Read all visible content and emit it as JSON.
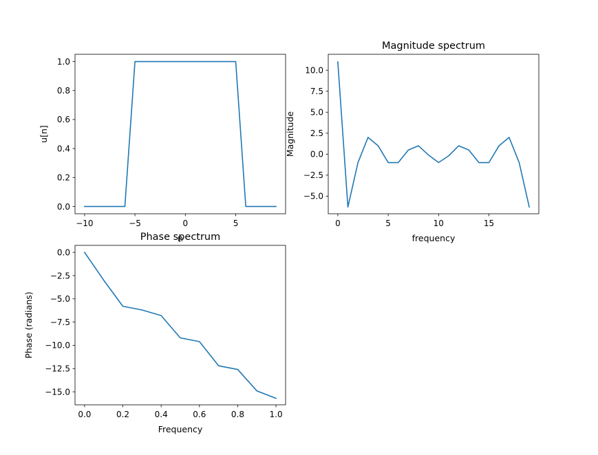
{
  "chart_data": [
    {
      "type": "line",
      "title": "",
      "xlabel": "n",
      "ylabel": "u[n]",
      "xlim": [
        -10.95,
        9.95
      ],
      "ylim": [
        -0.05,
        1.05
      ],
      "xticks": [
        -10,
        -5,
        0,
        5
      ],
      "yticks": [
        0.0,
        0.2,
        0.4,
        0.6,
        0.8,
        1.0
      ],
      "xtick_labels": [
        "−10",
        "−5",
        "0",
        "5"
      ],
      "ytick_labels": [
        "0.0",
        "0.2",
        "0.4",
        "0.6",
        "0.8",
        "1.0"
      ],
      "grid": false,
      "color": "#1f77b4",
      "x": [
        -10,
        -9,
        -8,
        -7,
        -6,
        -5,
        -4,
        -3,
        -2,
        -1,
        0,
        1,
        2,
        3,
        4,
        5,
        6,
        7,
        8,
        9
      ],
      "y": [
        0,
        0,
        0,
        0,
        0,
        1,
        1,
        1,
        1,
        1,
        1,
        1,
        1,
        1,
        1,
        1,
        0,
        0,
        0,
        0
      ]
    },
    {
      "type": "line",
      "title": "Magnitude spectrum",
      "xlabel": "frequency",
      "ylabel": "Magnitude",
      "xlim": [
        -0.95,
        19.95
      ],
      "ylim": [
        -7.1,
        11.9
      ],
      "xticks": [
        0,
        5,
        10,
        15
      ],
      "yticks": [
        -5.0,
        -2.5,
        0.0,
        2.5,
        5.0,
        7.5,
        10.0
      ],
      "xtick_labels": [
        "0",
        "5",
        "10",
        "15"
      ],
      "ytick_labels": [
        "−5.0",
        "−2.5",
        "0.0",
        "2.5",
        "5.0",
        "7.5",
        "10.0"
      ],
      "grid": false,
      "color": "#1f77b4",
      "x": [
        0,
        1,
        2,
        3,
        4,
        5,
        6,
        7,
        8,
        9,
        10,
        11,
        12,
        13,
        14,
        15,
        16,
        17,
        18,
        19
      ],
      "y": [
        11.0,
        -6.3,
        -1.0,
        2.0,
        1.0,
        -1.0,
        -1.0,
        0.5,
        1.0,
        -0.1,
        -1.0,
        -0.2,
        1.0,
        0.5,
        -1.0,
        -1.0,
        1.0,
        2.0,
        -1.0,
        -6.3
      ]
    },
    {
      "type": "line",
      "title": "Phase spectrum",
      "xlabel": "Frequency",
      "ylabel": "Phase (radians)",
      "xlim": [
        -0.05,
        1.05
      ],
      "ylim": [
        -16.4,
        0.75
      ],
      "xticks": [
        0.0,
        0.2,
        0.4,
        0.6,
        0.8,
        1.0
      ],
      "yticks": [
        -15.0,
        -12.5,
        -10.0,
        -7.5,
        -5.0,
        -2.5,
        0.0
      ],
      "xtick_labels": [
        "0.0",
        "0.2",
        "0.4",
        "0.6",
        "0.8",
        "1.0"
      ],
      "ytick_labels": [
        "−15.0",
        "−12.5",
        "−10.0",
        "−7.5",
        "−5.0",
        "−2.5",
        "0.0"
      ],
      "grid": false,
      "color": "#1f77b4",
      "x": [
        0.0,
        0.1,
        0.2,
        0.3,
        0.4,
        0.5,
        0.6,
        0.7,
        0.8,
        0.9,
        1.0
      ],
      "y": [
        0.0,
        -3.0,
        -5.8,
        -6.2,
        -6.8,
        -9.2,
        -9.6,
        -12.2,
        -12.6,
        -14.9,
        -15.7
      ]
    }
  ]
}
